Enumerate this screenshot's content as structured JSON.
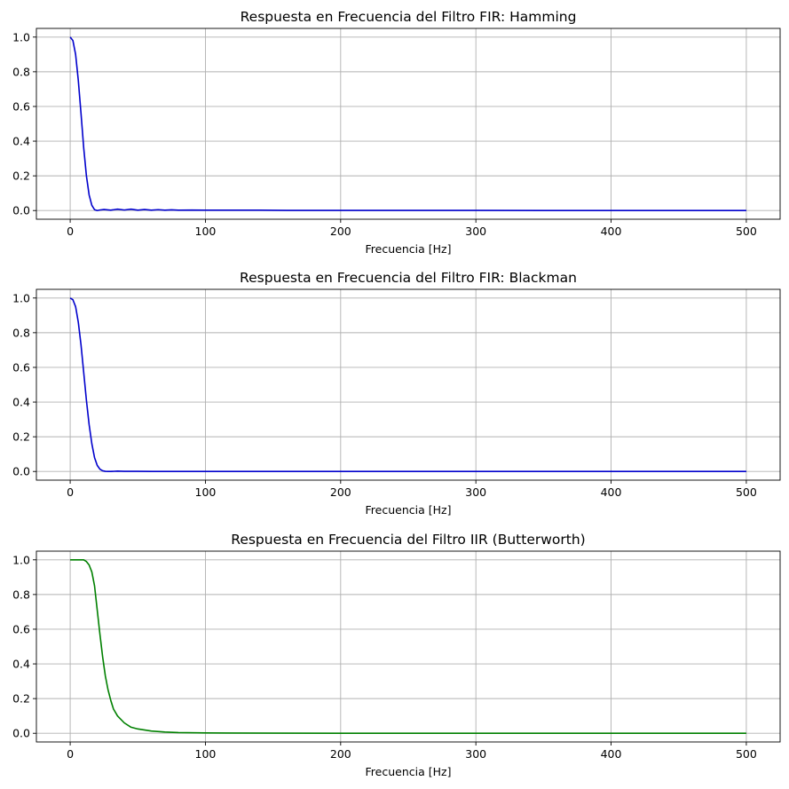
{
  "chart_data": [
    {
      "type": "line",
      "title": "Respuesta en Frecuencia del Filtro FIR: Hamming",
      "xlabel": "Frecuencia [Hz]",
      "ylabel": "",
      "xlim": [
        -25,
        525
      ],
      "ylim": [
        -0.05,
        1.05
      ],
      "xticks": [
        0,
        100,
        200,
        300,
        400,
        500
      ],
      "yticks": [
        0.0,
        0.2,
        0.4,
        0.6,
        0.8,
        1.0
      ],
      "xtick_labels": [
        "0",
        "100",
        "200",
        "300",
        "400",
        "500"
      ],
      "ytick_labels": [
        "0.0",
        "0.2",
        "0.4",
        "0.6",
        "0.8",
        "1.0"
      ],
      "grid": true,
      "series": [
        {
          "color": "#0000cc",
          "x": [
            0,
            2,
            4,
            6,
            8,
            10,
            12,
            14,
            16,
            18,
            20,
            22,
            25,
            30,
            35,
            40,
            45,
            50,
            55,
            60,
            65,
            70,
            75,
            80,
            90,
            100,
            120,
            140,
            160,
            180,
            200,
            250,
            300,
            350,
            400,
            450,
            500
          ],
          "y": [
            1.0,
            0.98,
            0.9,
            0.75,
            0.56,
            0.36,
            0.2,
            0.09,
            0.03,
            0.005,
            0.0,
            0.003,
            0.006,
            0.002,
            0.008,
            0.003,
            0.008,
            0.002,
            0.006,
            0.002,
            0.005,
            0.002,
            0.004,
            0.002,
            0.003,
            0.002,
            0.002,
            0.002,
            0.001,
            0.001,
            0.001,
            0.001,
            0.001,
            0.0,
            0.0,
            0.0,
            0.0
          ]
        }
      ]
    },
    {
      "type": "line",
      "title": "Respuesta en Frecuencia del Filtro FIR: Blackman",
      "xlabel": "Frecuencia [Hz]",
      "ylabel": "",
      "xlim": [
        -25,
        525
      ],
      "ylim": [
        -0.05,
        1.05
      ],
      "xticks": [
        0,
        100,
        200,
        300,
        400,
        500
      ],
      "yticks": [
        0.0,
        0.2,
        0.4,
        0.6,
        0.8,
        1.0
      ],
      "xtick_labels": [
        "0",
        "100",
        "200",
        "300",
        "400",
        "500"
      ],
      "ytick_labels": [
        "0.0",
        "0.2",
        "0.4",
        "0.6",
        "0.8",
        "1.0"
      ],
      "grid": true,
      "series": [
        {
          "color": "#0000cc",
          "x": [
            0,
            2,
            4,
            6,
            8,
            10,
            12,
            14,
            16,
            18,
            20,
            22,
            24,
            26,
            28,
            30,
            35,
            40,
            50,
            60,
            80,
            100,
            200,
            300,
            400,
            500
          ],
          "y": [
            1.0,
            0.99,
            0.95,
            0.86,
            0.73,
            0.57,
            0.41,
            0.27,
            0.16,
            0.08,
            0.035,
            0.013,
            0.004,
            0.001,
            0.0,
            0.0,
            0.002,
            0.001,
            0.001,
            0.0,
            0.0,
            0.0,
            0.0,
            0.0,
            0.0,
            0.0
          ]
        }
      ]
    },
    {
      "type": "line",
      "title": "Respuesta en Frecuencia del Filtro IIR (Butterworth)",
      "xlabel": "Frecuencia [Hz]",
      "ylabel": "",
      "xlim": [
        -25,
        525
      ],
      "ylim": [
        -0.05,
        1.05
      ],
      "xticks": [
        0,
        100,
        200,
        300,
        400,
        500
      ],
      "yticks": [
        0.0,
        0.2,
        0.4,
        0.6,
        0.8,
        1.0
      ],
      "xtick_labels": [
        "0",
        "100",
        "200",
        "300",
        "400",
        "500"
      ],
      "ytick_labels": [
        "0.0",
        "0.2",
        "0.4",
        "0.6",
        "0.8",
        "1.0"
      ],
      "grid": true,
      "series": [
        {
          "color": "#008000",
          "x": [
            0,
            5,
            10,
            12,
            14,
            16,
            18,
            20,
            22,
            24,
            26,
            28,
            30,
            32,
            35,
            40,
            45,
            50,
            60,
            70,
            80,
            100,
            150,
            200,
            300,
            400,
            500
          ],
          "y": [
            1.0,
            1.0,
            1.0,
            0.99,
            0.97,
            0.93,
            0.85,
            0.71,
            0.57,
            0.44,
            0.33,
            0.25,
            0.19,
            0.14,
            0.1,
            0.06,
            0.035,
            0.025,
            0.013,
            0.007,
            0.004,
            0.002,
            0.001,
            0.0,
            0.0,
            0.0,
            0.0
          ]
        }
      ]
    }
  ]
}
